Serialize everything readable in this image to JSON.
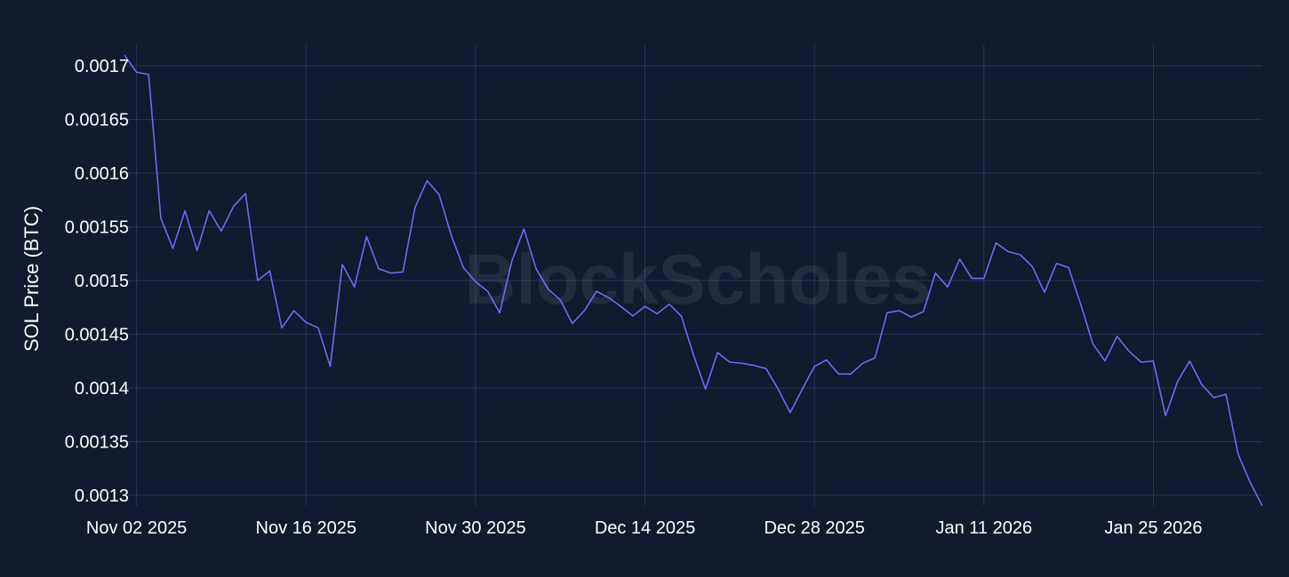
{
  "watermark": "BlockScholes",
  "colors": {
    "background": "#111a2e",
    "grid": "#26345a",
    "line": "#6b6cf5",
    "text": "#ffffff"
  },
  "chart_data": {
    "type": "line",
    "ylabel": "SOL Price (BTC)",
    "xlabel": "",
    "title": "",
    "grid": true,
    "ylim": [
      0.00129,
      0.00172
    ],
    "xlim": [
      "2025-11-01",
      "2026-02-03"
    ],
    "x_ticks": [
      {
        "date": "2025-11-02",
        "label": "Nov 02 2025"
      },
      {
        "date": "2025-11-16",
        "label": "Nov 16 2025"
      },
      {
        "date": "2025-11-30",
        "label": "Nov 30 2025"
      },
      {
        "date": "2025-12-14",
        "label": "Dec 14 2025"
      },
      {
        "date": "2025-12-28",
        "label": "Dec 28 2025"
      },
      {
        "date": "2026-01-11",
        "label": "Jan 11 2026"
      },
      {
        "date": "2026-01-25",
        "label": "Jan 25 2026"
      }
    ],
    "y_ticks": [
      {
        "value": 0.0013,
        "label": "0.0013"
      },
      {
        "value": 0.00135,
        "label": "0.00135"
      },
      {
        "value": 0.0014,
        "label": "0.0014"
      },
      {
        "value": 0.00145,
        "label": "0.00145"
      },
      {
        "value": 0.0015,
        "label": "0.0015"
      },
      {
        "value": 0.00155,
        "label": "0.00155"
      },
      {
        "value": 0.0016,
        "label": "0.0016"
      },
      {
        "value": 0.00165,
        "label": "0.00165"
      },
      {
        "value": 0.0017,
        "label": "0.0017"
      }
    ],
    "series": [
      {
        "x": [
          "2025-11-01",
          "2025-11-02",
          "2025-11-03",
          "2025-11-04",
          "2025-11-05",
          "2025-11-06",
          "2025-11-07",
          "2025-11-08",
          "2025-11-09",
          "2025-11-10",
          "2025-11-11",
          "2025-11-12",
          "2025-11-13",
          "2025-11-14",
          "2025-11-15",
          "2025-11-16",
          "2025-11-17",
          "2025-11-18",
          "2025-11-19",
          "2025-11-20",
          "2025-11-21",
          "2025-11-22",
          "2025-11-23",
          "2025-11-24",
          "2025-11-25",
          "2025-11-26",
          "2025-11-27",
          "2025-11-28",
          "2025-11-29",
          "2025-11-30",
          "2025-12-01",
          "2025-12-02",
          "2025-12-03",
          "2025-12-04",
          "2025-12-05",
          "2025-12-06",
          "2025-12-07",
          "2025-12-08",
          "2025-12-09",
          "2025-12-10",
          "2025-12-11",
          "2025-12-12",
          "2025-12-13",
          "2025-12-14",
          "2025-12-15",
          "2025-12-16",
          "2025-12-17",
          "2025-12-18",
          "2025-12-19",
          "2025-12-20",
          "2025-12-21",
          "2025-12-22",
          "2025-12-23",
          "2025-12-24",
          "2025-12-25",
          "2025-12-26",
          "2025-12-27",
          "2025-12-28",
          "2025-12-29",
          "2025-12-30",
          "2025-12-31",
          "2026-01-01",
          "2026-01-02",
          "2026-01-03",
          "2026-01-04",
          "2026-01-05",
          "2026-01-06",
          "2026-01-07",
          "2026-01-08",
          "2026-01-09",
          "2026-01-10",
          "2026-01-11",
          "2026-01-12",
          "2026-01-13",
          "2026-01-14",
          "2026-01-15",
          "2026-01-16",
          "2026-01-17",
          "2026-01-18",
          "2026-01-19",
          "2026-01-20",
          "2026-01-21",
          "2026-01-22",
          "2026-01-23",
          "2026-01-24",
          "2026-01-25",
          "2026-01-26",
          "2026-01-27",
          "2026-01-28",
          "2026-01-29",
          "2026-01-30",
          "2026-01-31",
          "2026-02-01",
          "2026-02-02",
          "2026-02-03"
        ],
        "y": [
          0.00171,
          0.001694,
          0.001692,
          0.001558,
          0.00153,
          0.001565,
          0.001528,
          0.001565,
          0.001546,
          0.001569,
          0.001581,
          0.0015,
          0.001509,
          0.001456,
          0.001472,
          0.001461,
          0.001456,
          0.00142,
          0.001515,
          0.001494,
          0.001541,
          0.001511,
          0.001507,
          0.001508,
          0.001568,
          0.001593,
          0.00158,
          0.001542,
          0.001512,
          0.001499,
          0.00149,
          0.00147,
          0.001518,
          0.001548,
          0.001511,
          0.001492,
          0.001482,
          0.00146,
          0.001472,
          0.00149,
          0.001484,
          0.001476,
          0.001467,
          0.001476,
          0.001469,
          0.001478,
          0.001467,
          0.001431,
          0.001399,
          0.001433,
          0.001424,
          0.001423,
          0.001421,
          0.001418,
          0.001399,
          0.001377,
          0.001399,
          0.00142,
          0.001426,
          0.001413,
          0.001413,
          0.001423,
          0.001428,
          0.00147,
          0.001472,
          0.001466,
          0.001471,
          0.001507,
          0.001494,
          0.00152,
          0.001502,
          0.001502,
          0.001535,
          0.001527,
          0.001524,
          0.001513,
          0.001489,
          0.001516,
          0.001512,
          0.001478,
          0.001441,
          0.001425,
          0.001448,
          0.001434,
          0.001424,
          0.001425,
          0.001374,
          0.001406,
          0.001425,
          0.001403,
          0.001391,
          0.001394,
          0.001338,
          0.001312,
          0.00129
        ]
      }
    ]
  }
}
